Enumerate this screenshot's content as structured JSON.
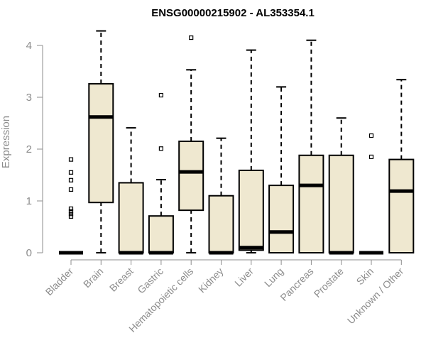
{
  "chart_data": {
    "type": "boxplot",
    "title": "ENSG00000215902 - AL353354.1",
    "ylabel": "Expression",
    "xlabel": "",
    "ylim": [
      0,
      4.3
    ],
    "yticks": [
      0,
      1,
      2,
      3,
      4
    ],
    "box_color": "#efe8d0",
    "line_color": "#000000",
    "categories": [
      "Bladder",
      "Brain",
      "Breast",
      "Gastric",
      "Hematopoietic cells",
      "Kidney",
      "Liver",
      "Lung",
      "Pancreas",
      "Prostate",
      "Skin",
      "Unknown / Other"
    ],
    "boxes": [
      {
        "category": "Bladder",
        "min": 0,
        "q1": 0,
        "median": 0,
        "q3": 0,
        "max": 0,
        "outliers": [
          0.7,
          0.75,
          0.8,
          0.85,
          1.22,
          1.4,
          1.55,
          1.8
        ]
      },
      {
        "category": "Brain",
        "min": 0,
        "q1": 0.97,
        "median": 2.62,
        "q3": 3.26,
        "max": 4.28,
        "outliers": []
      },
      {
        "category": "Breast",
        "min": 0,
        "q1": 0,
        "median": 0,
        "q3": 1.35,
        "max": 2.41,
        "outliers": []
      },
      {
        "category": "Gastric",
        "min": 0,
        "q1": 0,
        "median": 0,
        "q3": 0.71,
        "max": 1.41,
        "outliers": [
          2.01,
          3.04
        ]
      },
      {
        "category": "Hematopoietic cells",
        "min": 0,
        "q1": 0.82,
        "median": 1.56,
        "q3": 2.15,
        "max": 3.53,
        "outliers": [
          4.15
        ]
      },
      {
        "category": "Kidney",
        "min": 0,
        "q1": 0,
        "median": 0,
        "q3": 1.1,
        "max": 2.21,
        "outliers": []
      },
      {
        "category": "Liver",
        "min": 0,
        "q1": 0.05,
        "median": 0.1,
        "q3": 1.59,
        "max": 3.91,
        "outliers": []
      },
      {
        "category": "Lung",
        "min": 0,
        "q1": 0,
        "median": 0.4,
        "q3": 1.3,
        "max": 3.2,
        "outliers": []
      },
      {
        "category": "Pancreas",
        "min": 0,
        "q1": 0,
        "median": 1.3,
        "q3": 1.88,
        "max": 4.1,
        "outliers": []
      },
      {
        "category": "Prostate",
        "min": 0,
        "q1": 0,
        "median": 0,
        "q3": 1.88,
        "max": 2.6,
        "outliers": []
      },
      {
        "category": "Skin",
        "min": 0,
        "q1": 0,
        "median": 0,
        "q3": 0,
        "max": 0,
        "outliers": [
          1.85,
          2.26
        ]
      },
      {
        "category": "Unknown / Other",
        "min": 0,
        "q1": 0,
        "median": 1.19,
        "q3": 1.8,
        "max": 3.34,
        "outliers": []
      }
    ]
  }
}
